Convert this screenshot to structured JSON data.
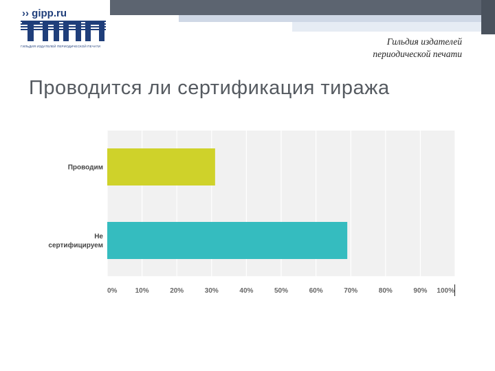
{
  "header": {
    "logo_text": "›› gipp.ru",
    "logo_caption": "ГИЛЬДИЯ ИЗДАТЕЛЕЙ ПЕРИОДИЧЕСКОЙ ПЕЧАТИ",
    "guild_line1": "Гильдия издателей",
    "guild_line2": "периодической печати"
  },
  "slide": {
    "title": "Проводится ли сертификация тиража"
  },
  "colors": {
    "bar1": "#cfd22a",
    "bar2": "#35bcbf",
    "plot_bg": "#f1f1f1",
    "grid": "#ffffff",
    "brand": "#1f3e7a"
  },
  "chart_data": {
    "type": "bar",
    "orientation": "horizontal",
    "categories": [
      "Проводим",
      "Не сертифицируем"
    ],
    "category_lines": [
      [
        "Проводим"
      ],
      [
        "Не",
        "сертифицируем"
      ]
    ],
    "values": [
      31,
      69
    ],
    "xlim": [
      0,
      100
    ],
    "ticks": [
      "0%",
      "10%",
      "20%",
      "30%",
      "40%",
      "50%",
      "60%",
      "70%",
      "80%",
      "90%",
      "100%"
    ],
    "grid": true,
    "legend": "none"
  }
}
